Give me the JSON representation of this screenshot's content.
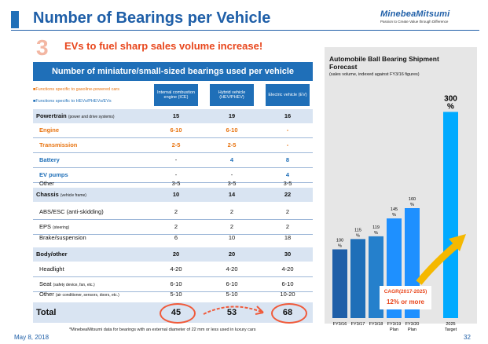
{
  "header": {
    "title": "Number of Bearings per Vehicle",
    "logo": "MinebeaMitsumi",
    "logo_tagline": "Passion to Create Value through Difference",
    "big_number": "3",
    "subheading": "EVs to fuel sharp sales volume increase!"
  },
  "table": {
    "banner": "Number of miniature/small-sized bearings used per vehicle",
    "legend_gas": "■Functions specific to gasoline-powered cars",
    "legend_ev": "■Functions specific to HEVs/PHEVs/EVs",
    "columns": [
      "Internal combustion engine (ICE)",
      "Hybrid vehicle (HEV/PHEV)",
      "Electric vehicle (EV)"
    ],
    "powertrain": {
      "label": "Powertrain",
      "note": "(power and drive systems)",
      "v": [
        "15",
        "19",
        "16"
      ]
    },
    "engine": {
      "label": "Engine",
      "v": [
        "6-10",
        "6-10",
        "-"
      ]
    },
    "transmission": {
      "label": "Transmission",
      "v": [
        "2-5",
        "2-5",
        "-"
      ]
    },
    "battery": {
      "label": "Battery",
      "v": [
        "-",
        "4",
        "8"
      ]
    },
    "ev_pumps": {
      "label": "EV pumps",
      "v": [
        "-",
        "-",
        "4"
      ]
    },
    "pt_other": {
      "label": "Other",
      "v": [
        "3-5",
        "3-5",
        "3-5"
      ]
    },
    "chassis": {
      "label": "Chassis",
      "note": "(vehicle frame)",
      "v": [
        "10",
        "14",
        "22"
      ]
    },
    "abs": {
      "label": "ABS/ESC (anti-skidding)",
      "v": [
        "2",
        "2",
        "2"
      ]
    },
    "eps": {
      "label": "EPS",
      "note": "(steering)",
      "v": [
        "2",
        "2",
        "2"
      ]
    },
    "brake": {
      "label": "Brake/suspension",
      "v": [
        "6",
        "10",
        "18"
      ]
    },
    "body": {
      "label": "Body/other",
      "v": [
        "20",
        "20",
        "30"
      ]
    },
    "headlight": {
      "label": "Headlight",
      "v": [
        "4-20",
        "4-20",
        "4-20"
      ]
    },
    "seat": {
      "label": "Seat",
      "note": "(safety device, fan, etc.)",
      "v": [
        "6-10",
        "6-10",
        "6-10"
      ]
    },
    "body_other": {
      "label": "Other",
      "note": "(air conditioner, sensors, doors, etc.)",
      "v": [
        "5-10",
        "5-10",
        "10-20"
      ]
    },
    "total": {
      "label": "Total",
      "v": [
        "45",
        "53",
        "68"
      ]
    },
    "footnote": "*MinebeaMitsumi data for bearings with an external diameter of 22 mm or less used in luxury cars"
  },
  "chart_data": {
    "type": "bar",
    "title": "Automobile Ball Bearing Shipment Forecast",
    "subtitle": "(sales volume, indexed against FY3/16 figures)",
    "categories": [
      "FY3/16",
      "FY3/17",
      "FY3/18",
      "FY3/19 Plan",
      "FY3/20 Plan",
      "2025 Target"
    ],
    "values": [
      100,
      115,
      119,
      145,
      160,
      300
    ],
    "data_labels": [
      "100 %",
      "115 %",
      "119 %",
      "145 %",
      "160 %",
      "300 %"
    ],
    "colors": [
      "#1f5fa8",
      "#1f6fb8",
      "#2580cc",
      "#1e90ff",
      "#1e90ff",
      "#00aaff"
    ],
    "cagr_label": "CAGR(2017-2025)",
    "cagr_value": "12% or more",
    "ylim": [
      0,
      320
    ]
  },
  "footer": {
    "date": "May 8, 2018",
    "page": "32"
  }
}
